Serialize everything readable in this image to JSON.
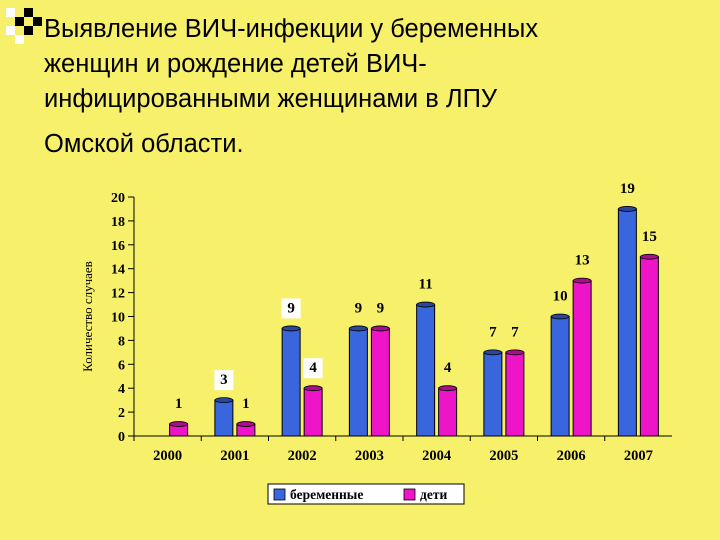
{
  "title": {
    "lines": [
      "Выявление ВИЧ-инфекции у беременных",
      "женщин и рождение детей ВИЧ-",
      "инфицированными  женщинами в ЛПУ",
      "Омской области."
    ]
  },
  "colors": {
    "background": "#f7f06a",
    "pregnant": "#3a66dd",
    "children": "#ee15c8"
  },
  "chart_data": {
    "type": "bar",
    "categories": [
      "2000",
      "2001",
      "2002",
      "2003",
      "2004",
      "2005",
      "2006",
      "2007"
    ],
    "series": [
      {
        "name": "беременные",
        "values": [
          0,
          3,
          9,
          9,
          11,
          7,
          10,
          19
        ]
      },
      {
        "name": "дети",
        "values": [
          1,
          1,
          4,
          9,
          4,
          7,
          13,
          15
        ]
      }
    ],
    "data_labels": [
      {
        "values": [
          "",
          "3",
          "9",
          "9",
          "11",
          "7",
          "10",
          "19"
        ]
      },
      {
        "values": [
          "1",
          "1",
          "4",
          "9",
          "4",
          "7",
          "13",
          "15"
        ]
      }
    ],
    "ylabel": "Количество случаев",
    "ylim": [
      0,
      20
    ],
    "yticks": [
      "0",
      "2",
      "4",
      "6",
      "8",
      "10",
      "12",
      "14",
      "16",
      "18",
      "20"
    ],
    "grid": false,
    "legend_position": "bottom"
  }
}
